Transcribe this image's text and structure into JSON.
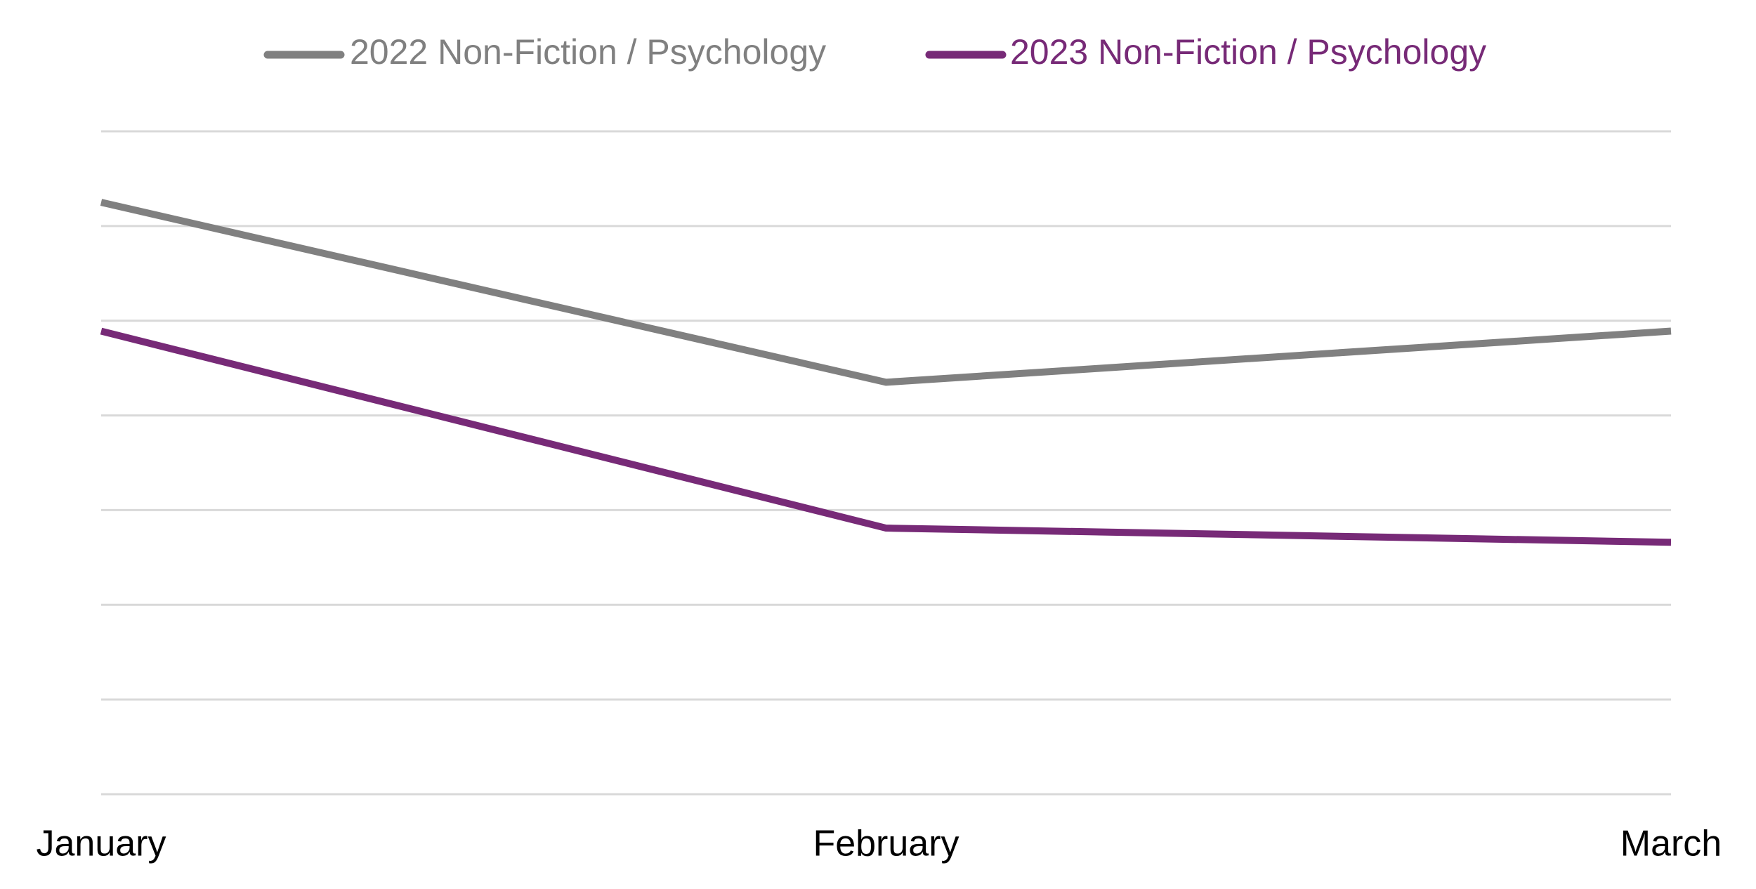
{
  "chart_data": {
    "type": "line",
    "categories": [
      "January",
      "February",
      "March"
    ],
    "series": [
      {
        "name": "2022 Non-Fiction / Psychology",
        "color": "#808080",
        "values": [
          6.25,
          4.35,
          4.89
        ]
      },
      {
        "name": "2023 Non-Fiction / Psychology",
        "color": "#772a77",
        "values": [
          4.89,
          2.81,
          2.66
        ]
      }
    ],
    "ylim": [
      0,
      7
    ],
    "yticks": [
      0,
      1,
      2,
      3,
      4,
      5,
      6,
      7
    ],
    "grid": true,
    "legend": "top"
  }
}
